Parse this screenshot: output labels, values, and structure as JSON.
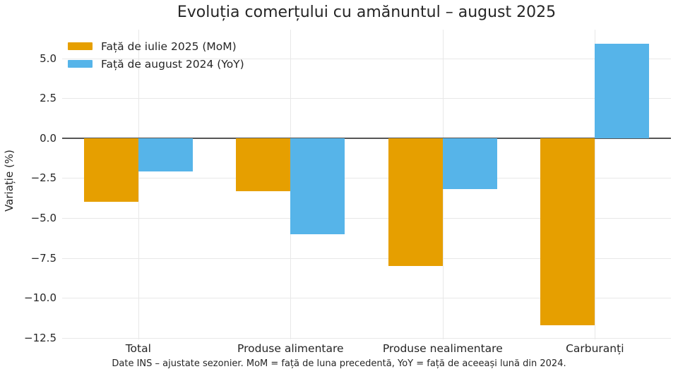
{
  "footnote": "Date INS – ajustate sezonier. MoM = față de luna precedentă, YoY = față de aceeași lună din 2024.",
  "chart_data": {
    "type": "bar",
    "title": "Evoluția comerțului cu amănuntul – august 2025",
    "xlabel": "",
    "ylabel": "Variație (%)",
    "categories": [
      "Total",
      "Produse alimentare",
      "Produse nealimentare",
      "Carburanți"
    ],
    "series": [
      {
        "name": "Față de iulie 2025 (MoM)",
        "color": "#E69F00",
        "values": [
          -4.0,
          -3.3,
          -8.0,
          -11.7
        ]
      },
      {
        "name": "Față de august 2024 (YoY)",
        "color": "#56B4E9",
        "values": [
          -2.1,
          -6.0,
          -3.2,
          5.9
        ]
      }
    ],
    "yticks": [
      5.0,
      2.5,
      0.0,
      -2.5,
      -5.0,
      -7.5,
      -10.0,
      -12.5
    ],
    "ylim": [
      -12.6,
      6.8
    ],
    "grid": true,
    "legend_position": "upper left",
    "colors": {
      "background": "#ffffff",
      "grid": "#e8e8e8",
      "zero_line": "#555555",
      "text": "#262626"
    }
  }
}
